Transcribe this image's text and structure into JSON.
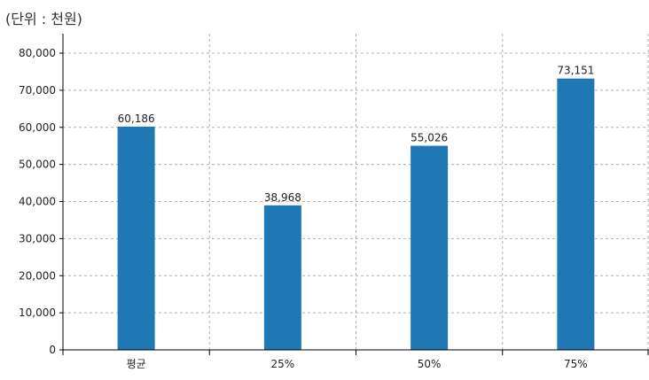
{
  "unit_label": "(단위 : 천원)",
  "chart_data": {
    "type": "bar",
    "categories": [
      "평균",
      "25%",
      "50%",
      "75%"
    ],
    "values": [
      60186,
      38968,
      55026,
      73151
    ],
    "value_labels": [
      "60,186",
      "38,968",
      "55,026",
      "73,151"
    ],
    "yticks": [
      "0",
      "10,000",
      "20,000",
      "30,000",
      "40,000",
      "50,000",
      "60,000",
      "70,000",
      "80,000"
    ],
    "ylim": [
      0,
      80000
    ],
    "grid": true,
    "colors": {
      "bar": "#1f77b4",
      "grid": "#b0b0b0",
      "axis": "#000000"
    }
  }
}
